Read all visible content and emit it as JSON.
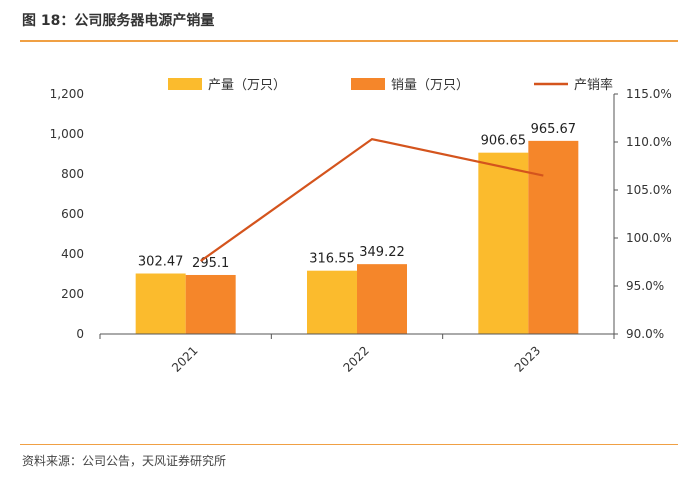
{
  "figure": {
    "title": "图 18：公司服务器电源产销量",
    "source": "资料来源：公司公告，天风证券研究所"
  },
  "chart_data": {
    "type": "bar",
    "categories": [
      "2021",
      "2022",
      "2023"
    ],
    "series": [
      {
        "name": "产量（万只）",
        "type": "bar",
        "axis": "left",
        "color": "#fbbb2d",
        "values": [
          302.47,
          316.55,
          906.65
        ],
        "labels": [
          "302.47",
          "316.55",
          "906.65"
        ]
      },
      {
        "name": "销量（万只）",
        "type": "bar",
        "axis": "left",
        "color": "#f5862a",
        "values": [
          295.1,
          349.22,
          965.67
        ],
        "labels": [
          "295.1",
          "349.22",
          "965.67"
        ]
      },
      {
        "name": "产销率",
        "type": "line",
        "axis": "right",
        "color": "#d4541d",
        "values": [
          97.6,
          110.3,
          106.5
        ]
      }
    ],
    "y_left": {
      "min": 0,
      "max": 1200,
      "ticks": [
        "0",
        "200",
        "400",
        "600",
        "800",
        "1,000",
        "1,200"
      ]
    },
    "y_right": {
      "min": 90,
      "max": 115,
      "unit": "%",
      "ticks": [
        "90.0%",
        "95.0%",
        "100.0%",
        "105.0%",
        "110.0%",
        "115.0%"
      ]
    },
    "legend": "top",
    "grid": false
  }
}
